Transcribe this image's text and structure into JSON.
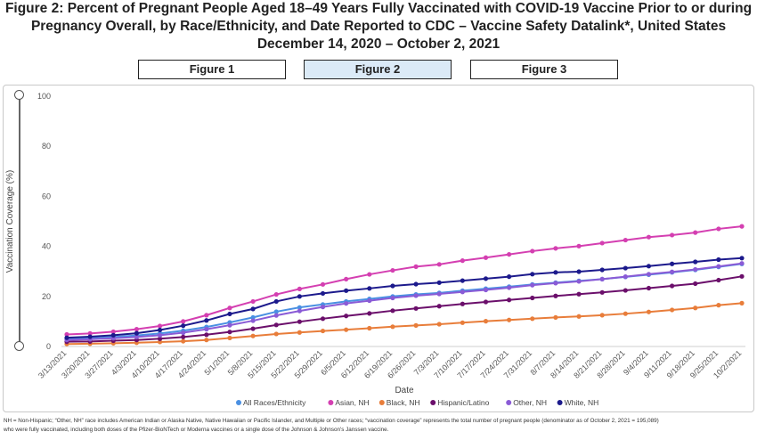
{
  "title": {
    "line1": "Figure 2: Percent of Pregnant People Aged 18–49 Years Fully Vaccinated with COVID-19 Vaccine Prior to or during",
    "line2": "Pregnancy Overall, by Race/Ethnicity, and Date Reported to CDC – Vaccine Safety Datalink*, United States",
    "line3": "December 14, 2020 – October 2, 2021"
  },
  "tabs": [
    {
      "label": "Figure 1",
      "active": false
    },
    {
      "label": "Figure 2",
      "active": true
    },
    {
      "label": "Figure 3",
      "active": false
    }
  ],
  "footnote": {
    "line1": "NH = Non-Hispanic; “Other, NH” race includes American Indian or Alaska Native, Native Hawaiian or Pacific Islander, and Multiple or Other races; “vaccination coverage” represents the total number of pregnant people (denominator as of October 2, 2021 = 195,089)",
    "line2": "who were fully vaccinated, including both doses of the Pfizer-BioNTech or Moderna vaccines or a single dose of the Johnson & Johnson's Janssen vaccine."
  },
  "chart_data": {
    "type": "line",
    "xlabel": "Date",
    "ylabel": "Vaccination Coverage (%)",
    "ylim": [
      0,
      100
    ],
    "yticks": [
      0,
      20,
      40,
      60,
      80,
      100
    ],
    "grid": false,
    "legend": "bottom",
    "categories": [
      "3/13/2021",
      "3/20/2021",
      "3/27/2021",
      "4/3/2021",
      "4/10/2021",
      "4/17/2021",
      "4/24/2021",
      "5/1/2021",
      "5/8/2021",
      "5/15/2021",
      "5/22/2021",
      "5/29/2021",
      "6/5/2021",
      "6/12/2021",
      "6/19/2021",
      "6/26/2021",
      "7/3/2021",
      "7/10/2021",
      "7/17/2021",
      "7/24/2021",
      "7/31/2021",
      "8/7/2021",
      "8/14/2021",
      "8/21/2021",
      "8/28/2021",
      "9/4/2021",
      "9/11/2021",
      "9/18/2021",
      "9/25/2021",
      "10/2/2021"
    ],
    "series": [
      {
        "name": "All Races/Ethnicity",
        "color": "#4a90e2",
        "values": [
          3.0,
          3.3,
          3.8,
          4.4,
          5.2,
          6.3,
          7.8,
          9.6,
          11.6,
          13.9,
          15.6,
          16.8,
          18.0,
          19.0,
          20.0,
          20.8,
          21.4,
          22.3,
          23.1,
          23.9,
          24.8,
          25.5,
          26.2,
          26.9,
          27.8,
          28.7,
          29.6,
          30.6,
          31.8,
          33.0
        ]
      },
      {
        "name": "Asian, NH",
        "color": "#d43fb1",
        "values": [
          4.8,
          5.2,
          5.9,
          6.9,
          8.2,
          10.0,
          12.5,
          15.4,
          18.0,
          20.8,
          23.0,
          24.8,
          26.9,
          28.8,
          30.4,
          31.9,
          32.8,
          34.3,
          35.5,
          36.8,
          38.1,
          39.2,
          40.1,
          41.3,
          42.5,
          43.7,
          44.5,
          45.5,
          47.0,
          48.0
        ]
      },
      {
        "name": "Black, NH",
        "color": "#e87d3a",
        "values": [
          1.0,
          1.1,
          1.3,
          1.5,
          1.8,
          2.1,
          2.6,
          3.4,
          4.2,
          5.0,
          5.6,
          6.2,
          6.7,
          7.3,
          7.9,
          8.4,
          8.9,
          9.5,
          10.1,
          10.6,
          11.1,
          11.6,
          12.0,
          12.5,
          13.1,
          13.8,
          14.6,
          15.4,
          16.5,
          17.3
        ]
      },
      {
        "name": "Hispanic/Latino",
        "color": "#6b0f6b",
        "values": [
          1.9,
          2.0,
          2.3,
          2.6,
          3.1,
          3.8,
          4.7,
          5.8,
          7.1,
          8.6,
          9.9,
          11.1,
          12.2,
          13.2,
          14.3,
          15.2,
          16.1,
          17.0,
          17.8,
          18.6,
          19.4,
          20.2,
          20.9,
          21.6,
          22.4,
          23.3,
          24.2,
          25.1,
          26.5,
          28.0
        ]
      },
      {
        "name": "Other, NH",
        "color": "#8a5bd6",
        "values": [
          2.6,
          2.9,
          3.3,
          3.8,
          4.5,
          5.5,
          6.9,
          8.5,
          10.3,
          12.4,
          14.2,
          15.8,
          17.2,
          18.3,
          19.4,
          20.3,
          21.0,
          21.8,
          22.6,
          23.5,
          24.5,
          25.3,
          26.0,
          26.9,
          27.9,
          28.9,
          29.8,
          30.8,
          32.0,
          33.2
        ]
      },
      {
        "name": "White, NH",
        "color": "#1c1a8c",
        "values": [
          3.5,
          3.9,
          4.5,
          5.3,
          6.6,
          8.3,
          10.4,
          13.0,
          15.0,
          18.0,
          20.0,
          21.2,
          22.3,
          23.2,
          24.2,
          24.9,
          25.5,
          26.3,
          27.1,
          27.9,
          28.9,
          29.6,
          29.9,
          30.6,
          31.3,
          32.1,
          33.0,
          33.8,
          34.7,
          35.3
        ]
      }
    ]
  }
}
